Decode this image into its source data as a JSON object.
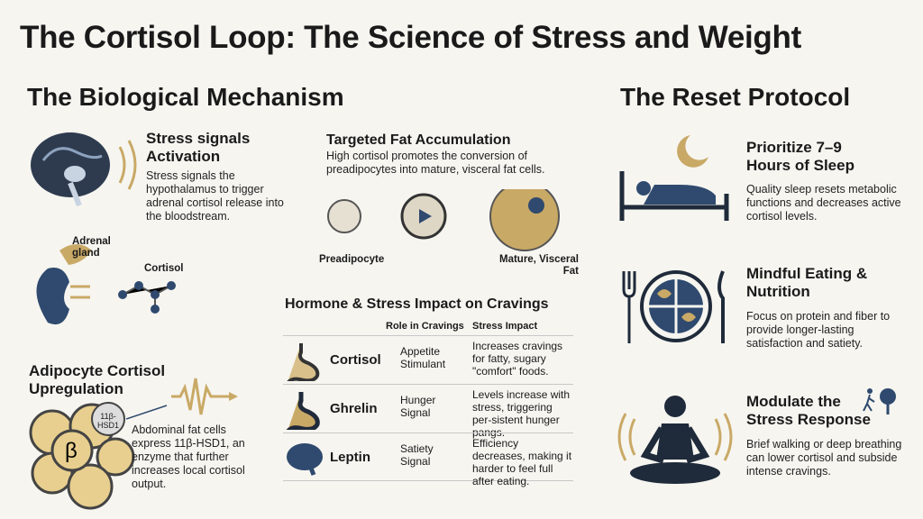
{
  "title": "The Cortisol Loop: The Science of Stress and Weight",
  "left": {
    "heading": "The Biological Mechanism",
    "activation": {
      "title": "Stress signals Activation",
      "body": "Stress signals the hypothalamus to trigger adrenal cortisol release into the bloodstream."
    },
    "adrenal_label": "Adrenal gland",
    "cortisol_label": "Cortisol",
    "adipocyte": {
      "title": "Adipocyte Cortisol Upregulation",
      "body": "Abdominal fat cells express 11β-HSD1, an enzyme that further increases local cortisol output.",
      "enzyme_label": "11β-HSD1",
      "beta": "β"
    }
  },
  "middle": {
    "fat": {
      "title": "Targeted Fat Accumulation",
      "body": "High cortisol promotes the conversion of preadipocytes into mature, visceral fat cells.",
      "pre_label": "Preadipocyte",
      "mature_label": "Mature, Visceral Fat"
    },
    "table": {
      "title": "Hormone & Stress Impact on Cravings",
      "headers": [
        "Role in Cravings",
        "Stress Impact"
      ],
      "rows": [
        {
          "hormone": "Cortisol",
          "icon": "stomach-icon",
          "role": "Appetite Stimulant",
          "impact": "Increases cravings for fatty, sugary \"comfort\" foods."
        },
        {
          "hormone": "Ghrelin",
          "icon": "stomach-dark-icon",
          "role": "Hunger Signal",
          "impact": "Levels increase with stress, triggering per-sistent hunger pangs."
        },
        {
          "hormone": "Leptin",
          "icon": "brain-icon",
          "role": "Satiety Signal",
          "impact": "Efficiency decreases, making it harder to feel full after eating."
        }
      ]
    }
  },
  "right": {
    "heading": "The Reset Protocol",
    "items": [
      {
        "title": "Prioritize 7–9 Hours of Sleep",
        "body": "Quality sleep resets metabolic functions and decreases active cortisol levels.",
        "icon": "sleep-bed-icon"
      },
      {
        "title": "Mindful Eating & Nutrition",
        "body": "Focus on protein and fiber to provide longer-lasting satisfaction and satiety.",
        "icon": "plate-icon"
      },
      {
        "title": "Modulate the Stress Response",
        "body": "Brief walking or deep breathing can lower cortisol and subside intense cravings.",
        "icon": "meditation-icon"
      }
    ]
  },
  "colors": {
    "navy": "#2f4a6e",
    "gold": "#c9a966",
    "tan": "#e8cf8f",
    "bg": "#f6f5f0"
  }
}
